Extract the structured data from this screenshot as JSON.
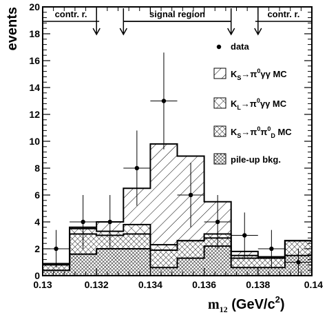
{
  "chart_data": {
    "type": "histogram",
    "x_label_main": "m",
    "x_label_sub": "12",
    "x_label_unit": "(GeV/c",
    "x_label_sup": "2",
    "x_label_close": ")",
    "y_label": "events",
    "xlim": [
      0.13,
      0.14
    ],
    "ylim": [
      0,
      20
    ],
    "x_ticks": [
      "0.13",
      "0.132",
      "0.134",
      "0.136",
      "0.138",
      "0.14"
    ],
    "y_ticks": [
      "0",
      "2",
      "4",
      "6",
      "8",
      "10",
      "12",
      "14",
      "16",
      "18",
      "20"
    ],
    "bin_edges": [
      0.13,
      0.131,
      0.132,
      0.133,
      0.134,
      0.135,
      0.136,
      0.137,
      0.138,
      0.139,
      0.14
    ],
    "regions": [
      {
        "label": "contr. r.",
        "from": 0.13,
        "to": 0.1321
      },
      {
        "label": "signal region",
        "from": 0.133,
        "to": 0.137
      },
      {
        "label": "contr. r.",
        "from": 0.1379,
        "to": 0.14
      }
    ],
    "region_arrows": [
      0.132,
      0.133,
      0.137,
      0.138
    ],
    "series": [
      {
        "name": "pile-up bkg.",
        "kind": "stack",
        "pattern": "crossdense",
        "values": [
          0.4,
          1.6,
          2.0,
          2.0,
          0.6,
          1.3,
          2.2,
          0.6,
          0.6,
          1.5
        ]
      },
      {
        "name": "K_S→π0π0_D MC",
        "kind": "stack",
        "pattern": "crossmed",
        "values": [
          0.4,
          1.5,
          1.0,
          1.1,
          1.3,
          1.3,
          0.6,
          0.7,
          0.7,
          1.1
        ]
      },
      {
        "name": "K_L→π0γγ MC",
        "kind": "stack",
        "pattern": "crosswide",
        "values": [
          0.1,
          0.4,
          0.3,
          0.7,
          0.4,
          0.0,
          0.3,
          0.2,
          0.1,
          0.0
        ]
      },
      {
        "name": "K_S→π0γγ MC",
        "kind": "stack",
        "pattern": "diag",
        "values": [
          0.0,
          0.1,
          0.7,
          2.7,
          7.5,
          6.3,
          2.4,
          0.3,
          0.0,
          0.0
        ]
      },
      {
        "name": "data",
        "kind": "points",
        "x": [
          0.1305,
          0.1315,
          0.1325,
          0.1335,
          0.1345,
          0.1355,
          0.1365,
          0.1375,
          0.1385,
          0.1395
        ],
        "y": [
          2,
          4,
          4,
          8,
          13,
          6,
          4,
          3,
          2,
          1
        ],
        "yerr_up": [
          1.4,
          2.0,
          2.0,
          2.8,
          3.6,
          2.4,
          2.0,
          1.7,
          1.4,
          1.0
        ],
        "yerr_down": [
          1.4,
          2.0,
          2.0,
          2.8,
          3.6,
          2.4,
          2.0,
          1.7,
          1.4,
          1.0
        ]
      }
    ],
    "legend": [
      {
        "kind": "marker",
        "label": "data"
      },
      {
        "kind": "box",
        "pattern": "diag",
        "main": "K",
        "sub": "S",
        "mid": "→π",
        "sup": "0",
        "tail": "γγ MC"
      },
      {
        "kind": "box",
        "pattern": "crosswide",
        "main": "K",
        "sub": "L",
        "mid": "→π",
        "sup": "0",
        "tail": "γγ MC"
      },
      {
        "kind": "box",
        "pattern": "crossmed",
        "main": "K",
        "sub": "S",
        "mid": "→π",
        "sup": "0",
        "mid2": "π",
        "sup2": "0",
        "sub2": "D",
        "tail": " MC"
      },
      {
        "kind": "box",
        "pattern": "crossdense",
        "label": "pile-up bkg."
      }
    ]
  }
}
